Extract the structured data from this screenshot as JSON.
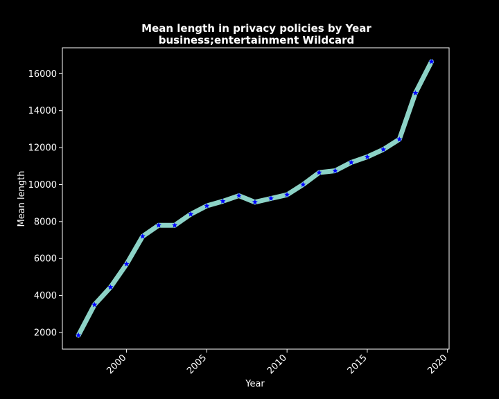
{
  "chart_data": {
    "type": "line",
    "title": "Mean length in privacy policies by Year",
    "subtitle": "business;entertainment Wildcard",
    "xlabel": "Year",
    "ylabel": "Mean length",
    "xlim": [
      1996,
      2020.1
    ],
    "ylim": [
      1100,
      17400
    ],
    "x_ticks": [
      2000,
      2005,
      2010,
      2015,
      2020
    ],
    "y_ticks": [
      2000,
      4000,
      6000,
      8000,
      10000,
      12000,
      14000,
      16000
    ],
    "x_tick_rotation": 45,
    "grid": false,
    "legend": "none",
    "series": [
      {
        "line_color": "#8dd3c7",
        "marker": "star",
        "marker_color": "#0000ff",
        "x": [
          1997,
          1998,
          1999,
          2000,
          2001,
          2002,
          2003,
          2004,
          2005,
          2006,
          2007,
          2008,
          2009,
          2010,
          2011,
          2012,
          2013,
          2014,
          2015,
          2016,
          2017,
          2018,
          2019
        ],
        "y": [
          1850,
          3500,
          4450,
          5700,
          7200,
          7800,
          7800,
          8400,
          8850,
          9100,
          9400,
          9050,
          9250,
          9450,
          10000,
          10650,
          10750,
          11200,
          11500,
          11900,
          12450,
          14950,
          16650
        ]
      }
    ]
  }
}
